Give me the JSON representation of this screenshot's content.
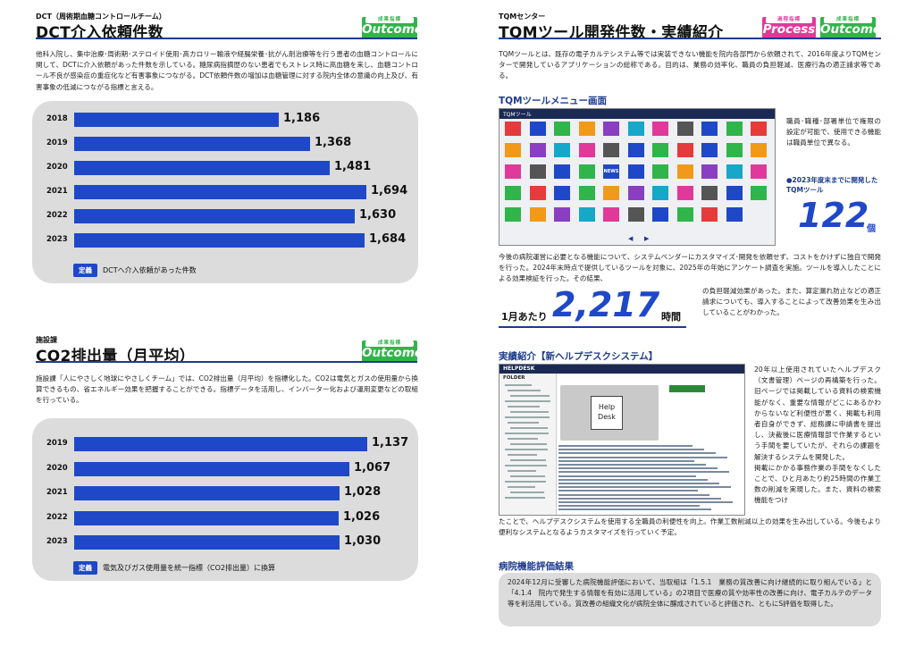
{
  "left": {
    "dct": {
      "kicker": "DCT（周術期血糖コントロールチーム）",
      "title": "DCT介入依頼件数",
      "badge": {
        "cap": "成果指標",
        "label": "Outcome",
        "color": "#2fb54a"
      },
      "body": "他科入院し、集中治療･周術期･ステロイド使用･高カロリー輸液や経腸栄養･抗がん剤治療等を行う患者の血糖コントロールに関して、DCTに介入依頼があった件数を示している。糖尿病指摘歴のない患者でもストレス時に高血糖を来し、血糖コントロール不良が感染症の重症化など有害事象につながる。DCT依頼件数の増加は血糖管理に対する院内全体の意識の向上及び、有害事象の低減につながる指標と言える。",
      "def_tag": "定義",
      "def_text": "DCTへ介入依頼があった件数"
    },
    "co2": {
      "kicker": "施設課",
      "title": "CO2排出量（月平均）",
      "badge": {
        "cap": "成果指標",
        "label": "Outcome",
        "color": "#2fb54a"
      },
      "body": "施設課「人にやさしく地球にやさしくチーム」では、CO2排出量（月平均）を指標化した。CO2は電気とガスの使用量から換算できるもの、省エネルギー効果を把握することができる。指標データを活用し、インバーター化および運用変更などの取組を行っている。",
      "def_tag": "定義",
      "def_text": "電気及びガス使用量を統一指標（CO2排出量）に換算"
    }
  },
  "chart_data": [
    {
      "type": "bar",
      "orientation": "horizontal",
      "categories": [
        "2018",
        "2019",
        "2020",
        "2021",
        "2022",
        "2023"
      ],
      "values": [
        1186,
        1368,
        1481,
        1694,
        1630,
        1684
      ],
      "labels": [
        "1,186",
        "1,368",
        "1,481",
        "1,694",
        "1,630",
        "1,684"
      ],
      "bar_color": "#1f48c8",
      "xlim": [
        0,
        1700
      ]
    },
    {
      "type": "bar",
      "orientation": "horizontal",
      "categories": [
        "2019",
        "2020",
        "2021",
        "2022",
        "2023"
      ],
      "values": [
        1137,
        1067,
        1028,
        1026,
        1030
      ],
      "labels": [
        "1,137",
        "1,067",
        "1,028",
        "1,026",
        "1,030"
      ],
      "bar_color": "#1f48c8",
      "xlim": [
        0,
        1137
      ]
    }
  ],
  "right": {
    "kicker": "TQMセンター",
    "title": "TQMツール開発件数・実績紹介",
    "badge_process": {
      "cap": "過程指標",
      "label": "Process",
      "color": "#e0399a"
    },
    "badge_outcome": {
      "cap": "成果指標",
      "label": "Outcome",
      "color": "#2fb54a"
    },
    "intro": "TQMツールとは、既存の電子カルテシステム等では実装できない機能を院内各部門から依頼されて、2016年度よりTQMセンターで開発しているアプリケーションの総称である。目的は、業務の効率化、職員の負担軽減、医療行為の適正請求等である。",
    "menu_heading": "TQMツールメニュー画面",
    "menu_side": "職員･職種･部署単位で権限の設定が可能で、使用できる機能は職員単位で異なる。",
    "count_caption": "●2023年度末までに開発したTQMツール",
    "count_value": "122",
    "count_unit": "個",
    "para2": "今後の病院運営に必要となる機能について、システムベンダーにカスタマイズ･開発を依頼せず、コストをかけずに独自で開発を行った。2024年末時点で提供しているツールを対象に、2025年の年始にアンケート調査を実施。ツールを導入したことによる効果検証を行った。その結果、",
    "hour_pre": "1月あたり",
    "hour_value": "2,217",
    "hour_unit": "時間",
    "hour_text": "の負担軽減効果があった。また、算定漏れ防止などの適正請求についても、導入することによって改善効果を生み出していることがわかった。",
    "help_heading": "実績紹介【新ヘルプデスクシステム】",
    "help_side": "20年以上使用されていたヘルプデスク（文書管理）ページの再構築を行った。旧ページでは掲載している資料の検索機能がなく、重要な情報がどこにあるかわからないなど利便性が悪く、掲載も利用者自身ができず、総務課に申請書を提出し、決裁後に医療情報部で作業するという手間を要していたが、それらの課題を解決するシステムを開発した。\n掲載にかかる事務作業の手間をなくしたことで、ひと月あたり約25時間の作業工数の削減を実現した。また、資料の検索機能をつけ",
    "help_after": "たことで、ヘルプデスクシステムを使用する全職員の利便性を向上。作業工数削減以上の効果を生み出している。今後もより便利なシステムとなるようカスタマイズを行っていく予定。",
    "eval_heading": "病院機能評価結果",
    "eval_text": "2024年12月に受審した病院機能評価において、当取組は「1.5.1　業務の質改善に向け継続的に取り組んでいる」と「4.1.4　院内で発生する情報を有効に活用している」の2項目で医療の質や効率性の改善に向け、電子カルテのデータ等を利活用している。質改善の組織文化が病院全体に醸成されていると評価され、ともにS評価を取得した。",
    "shot1": {
      "title": "TQMツール",
      "news": "NEWS",
      "nav_prev": "◀",
      "nav_next": "▶"
    },
    "shot2": {
      "title": "HELPDESK",
      "folder": "FOLDER",
      "img_line1": "Help",
      "img_line2": "Desk"
    }
  }
}
